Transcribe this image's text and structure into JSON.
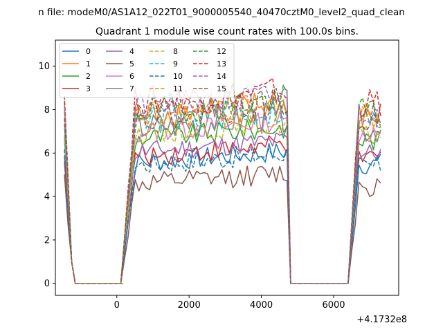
{
  "chart_data": {
    "type": "line",
    "suptitle": "n file: modeM0/AS1A12_022T01_9000005540_40470cztM0_level2_quad_clean",
    "title": "Quadrant 1 module wise count rates with 100.0s bins.",
    "xlabel": "",
    "ylabel": "",
    "x_offset_label": "+4.1732e8",
    "xlim": [
      -1700,
      7800
    ],
    "ylim": [
      -0.55,
      11.2
    ],
    "xticks": [
      0,
      2000,
      4000,
      6000
    ],
    "yticks": [
      0,
      2,
      4,
      6,
      8,
      10
    ],
    "grid": false,
    "legend_position": "top-left",
    "legend_columns": 4,
    "segments": [
      {
        "x_start": -1450,
        "x_end": 110,
        "bin": 100,
        "spike_end": 2,
        "zero_from": 3
      },
      {
        "x_start": 110,
        "x_end": 4900,
        "bin": 100,
        "ramp_start": 4,
        "drop_end": 2
      },
      {
        "x_start": 4900,
        "x_end": 6400,
        "bin": 100,
        "zero": true
      },
      {
        "x_start": 6400,
        "x_end": 7290,
        "bin": 100,
        "ramp_start": 3
      }
    ],
    "series": [
      {
        "name": "0",
        "color": "#1f77b4",
        "dash": "solid",
        "level": 5.5
      },
      {
        "name": "1",
        "color": "#ff7f0e",
        "dash": "solid",
        "level": 7.7
      },
      {
        "name": "2",
        "color": "#2ca02c",
        "dash": "solid",
        "level": 6.6
      },
      {
        "name": "3",
        "color": "#d62728",
        "dash": "solid",
        "level": 5.8
      },
      {
        "name": "4",
        "color": "#9467bd",
        "dash": "solid",
        "level": 6.0
      },
      {
        "name": "5",
        "color": "#8c564b",
        "dash": "solid",
        "level": 4.5
      },
      {
        "name": "6",
        "color": "#e377c2",
        "dash": "solid",
        "level": 6.9
      },
      {
        "name": "7",
        "color": "#7f7f7f",
        "dash": "solid",
        "level": 7.1
      },
      {
        "name": "8",
        "color": "#bcbd22",
        "dash": "dashed",
        "level": 6.8
      },
      {
        "name": "9",
        "color": "#17becf",
        "dash": "dashed",
        "level": 7.4
      },
      {
        "name": "10",
        "color": "#1f77b4",
        "dash": "dashed",
        "level": 5.4
      },
      {
        "name": "11",
        "color": "#ff7f0e",
        "dash": "dashed",
        "level": 7.6
      },
      {
        "name": "12",
        "color": "#2ca02c",
        "dash": "dashed",
        "level": 7.9
      },
      {
        "name": "13",
        "color": "#d62728",
        "dash": "dashed",
        "level": 8.3
      },
      {
        "name": "14",
        "color": "#9467bd",
        "dash": "dashed",
        "level": 8.0
      },
      {
        "name": "15",
        "color": "#8c564b",
        "dash": "dashed",
        "level": 7.7
      }
    ]
  }
}
